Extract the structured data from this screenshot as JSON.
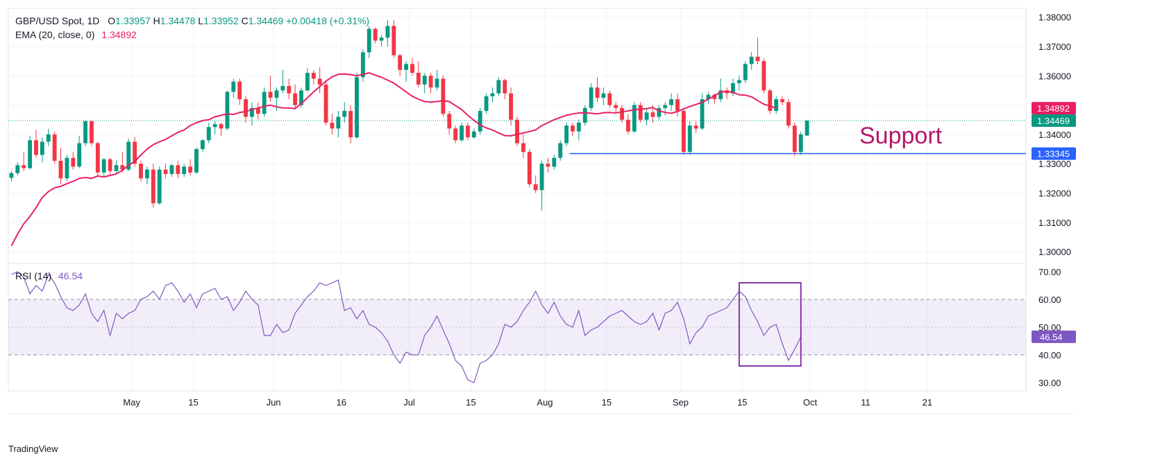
{
  "header": {
    "symbol": "GBP/USD Spot, 1D",
    "o_label": "O",
    "o_value": "1.33957",
    "h_label": "H",
    "h_value": "1.34478",
    "l_label": "L",
    "l_value": "1.33952",
    "c_label": "C",
    "c_value": "1.34469",
    "change": "+0.00418 (+0.31%)",
    "ema_label": "EMA (20, close, 0)",
    "ema_value": "1.34892",
    "rsi_label": "RSI (14)",
    "rsi_value": "46.54"
  },
  "colors": {
    "up": "#089981",
    "down": "#f23645",
    "ema": "#e91e63",
    "rsi": "#7e57c2",
    "support_line": "#2962ff",
    "annotation": "#b5176b"
  },
  "annotation_text": "Support",
  "logo_text": "TradingView",
  "chart_data": [
    {
      "type": "candlestick",
      "title": "GBP/USD Spot, 1D",
      "y_ticks": [
        "1.38000",
        "1.37000",
        "1.36000",
        "1.35000",
        "1.34000",
        "1.33000",
        "1.32000",
        "1.31000",
        "1.30000"
      ],
      "ylim": [
        1.296,
        1.383
      ],
      "x_ticks": [
        {
          "label": "May",
          "i": 20
        },
        {
          "label": "15",
          "i": 30
        },
        {
          "label": "Jun",
          "i": 43
        },
        {
          "label": "16",
          "i": 54
        },
        {
          "label": "Jul",
          "i": 65
        },
        {
          "label": "15",
          "i": 75
        },
        {
          "label": "Aug",
          "i": 87
        },
        {
          "label": "15",
          "i": 97
        },
        {
          "label": "Sep",
          "i": 109
        },
        {
          "label": "15",
          "i": 119
        },
        {
          "label": "Oct",
          "i": 130
        },
        {
          "label": "11",
          "i": 139
        },
        {
          "label": "21",
          "i": 149
        }
      ],
      "xlim": [
        0,
        165
      ],
      "price_labels": [
        {
          "value": 1.34892,
          "text": "1.34892",
          "color": "#e91e63"
        },
        {
          "value": 1.34469,
          "text": "1.34469",
          "color": "#089981"
        },
        {
          "value": 1.33345,
          "text": "1.33345",
          "color": "#2962ff"
        }
      ],
      "support_level": 1.33345,
      "support_start_index": 91,
      "close_line": 1.34469,
      "candles": [
        [
          1.3252,
          1.3275,
          1.324,
          1.3268
        ],
        [
          1.3268,
          1.3305,
          1.326,
          1.3295
        ],
        [
          1.3295,
          1.334,
          1.3275,
          1.3285
        ],
        [
          1.3285,
          1.3395,
          1.328,
          1.338
        ],
        [
          1.338,
          1.3415,
          1.332,
          1.333
        ],
        [
          1.333,
          1.339,
          1.3305,
          1.3375
        ],
        [
          1.3375,
          1.342,
          1.336,
          1.34
        ],
        [
          1.34,
          1.341,
          1.33,
          1.331
        ],
        [
          1.331,
          1.3355,
          1.323,
          1.325
        ],
        [
          1.325,
          1.333,
          1.324,
          1.332
        ],
        [
          1.332,
          1.334,
          1.328,
          1.329
        ],
        [
          1.329,
          1.3395,
          1.3285,
          1.337
        ],
        [
          1.337,
          1.3448,
          1.336,
          1.3445
        ],
        [
          1.3445,
          1.3447,
          1.336,
          1.337
        ],
        [
          1.337,
          1.3375,
          1.326,
          1.327
        ],
        [
          1.327,
          1.332,
          1.3255,
          1.3315
        ],
        [
          1.3315,
          1.332,
          1.326,
          1.3275
        ],
        [
          1.3275,
          1.331,
          1.3265,
          1.3295
        ],
        [
          1.3295,
          1.334,
          1.327,
          1.328
        ],
        [
          1.328,
          1.3385,
          1.3275,
          1.3375
        ],
        [
          1.3375,
          1.3392,
          1.329,
          1.33
        ],
        [
          1.33,
          1.331,
          1.324,
          1.325
        ],
        [
          1.325,
          1.329,
          1.323,
          1.328
        ],
        [
          1.328,
          1.33,
          1.315,
          1.3165
        ],
        [
          1.3165,
          1.329,
          1.316,
          1.328
        ],
        [
          1.328,
          1.33,
          1.325,
          1.3265
        ],
        [
          1.3265,
          1.33,
          1.3255,
          1.3295
        ],
        [
          1.3295,
          1.331,
          1.325,
          1.3265
        ],
        [
          1.3265,
          1.33,
          1.3255,
          1.329
        ],
        [
          1.329,
          1.3315,
          1.326,
          1.327
        ],
        [
          1.327,
          1.3355,
          1.3265,
          1.335
        ],
        [
          1.335,
          1.3385,
          1.334,
          1.338
        ],
        [
          1.338,
          1.344,
          1.337,
          1.3425
        ],
        [
          1.3425,
          1.3445,
          1.34,
          1.3435
        ],
        [
          1.3435,
          1.344,
          1.3395,
          1.342
        ],
        [
          1.342,
          1.355,
          1.3415,
          1.3545
        ],
        [
          1.3545,
          1.359,
          1.3525,
          1.358
        ],
        [
          1.358,
          1.359,
          1.35,
          1.352
        ],
        [
          1.352,
          1.353,
          1.344,
          1.346
        ],
        [
          1.346,
          1.351,
          1.343,
          1.349
        ],
        [
          1.349,
          1.351,
          1.345,
          1.347
        ],
        [
          1.347,
          1.356,
          1.346,
          1.3545
        ],
        [
          1.3545,
          1.36,
          1.351,
          1.3525
        ],
        [
          1.3525,
          1.356,
          1.348,
          1.355
        ],
        [
          1.355,
          1.362,
          1.354,
          1.3565
        ],
        [
          1.3565,
          1.359,
          1.352,
          1.354
        ],
        [
          1.354,
          1.357,
          1.349,
          1.35
        ],
        [
          1.35,
          1.356,
          1.349,
          1.355
        ],
        [
          1.355,
          1.3625,
          1.3545,
          1.361
        ],
        [
          1.361,
          1.362,
          1.357,
          1.359
        ],
        [
          1.359,
          1.363,
          1.354,
          1.357
        ],
        [
          1.357,
          1.358,
          1.343,
          1.344
        ],
        [
          1.344,
          1.347,
          1.34,
          1.342
        ],
        [
          1.342,
          1.348,
          1.339,
          1.346
        ],
        [
          1.346,
          1.351,
          1.344,
          1.348
        ],
        [
          1.348,
          1.35,
          1.337,
          1.339
        ],
        [
          1.339,
          1.361,
          1.3385,
          1.3595
        ],
        [
          1.3595,
          1.369,
          1.358,
          1.368
        ],
        [
          1.368,
          1.377,
          1.366,
          1.376
        ],
        [
          1.376,
          1.3765,
          1.371,
          1.372
        ],
        [
          1.372,
          1.374,
          1.37,
          1.373
        ],
        [
          1.373,
          1.379,
          1.37,
          1.377
        ],
        [
          1.377,
          1.379,
          1.366,
          1.367
        ],
        [
          1.367,
          1.3675,
          1.36,
          1.362
        ],
        [
          1.362,
          1.365,
          1.358,
          1.364
        ],
        [
          1.364,
          1.366,
          1.36,
          1.361
        ],
        [
          1.361,
          1.365,
          1.356,
          1.357
        ],
        [
          1.357,
          1.361,
          1.354,
          1.36
        ],
        [
          1.36,
          1.361,
          1.354,
          1.356
        ],
        [
          1.356,
          1.362,
          1.355,
          1.359
        ],
        [
          1.359,
          1.36,
          1.346,
          1.347
        ],
        [
          1.347,
          1.348,
          1.34,
          1.342
        ],
        [
          1.342,
          1.343,
          1.337,
          1.338
        ],
        [
          1.338,
          1.344,
          1.3375,
          1.343
        ],
        [
          1.343,
          1.344,
          1.338,
          1.339
        ],
        [
          1.339,
          1.342,
          1.3385,
          1.341
        ],
        [
          1.341,
          1.349,
          1.34,
          1.348
        ],
        [
          1.348,
          1.354,
          1.347,
          1.353
        ],
        [
          1.353,
          1.356,
          1.351,
          1.354
        ],
        [
          1.354,
          1.3595,
          1.353,
          1.3585
        ],
        [
          1.3585,
          1.359,
          1.352,
          1.354
        ],
        [
          1.354,
          1.356,
          1.343,
          1.345
        ],
        [
          1.345,
          1.346,
          1.336,
          1.337
        ],
        [
          1.337,
          1.34,
          1.332,
          1.334
        ],
        [
          1.334,
          1.335,
          1.322,
          1.323
        ],
        [
          1.323,
          1.326,
          1.32,
          1.321
        ],
        [
          1.321,
          1.331,
          1.314,
          1.33
        ],
        [
          1.33,
          1.332,
          1.327,
          1.329
        ],
        [
          1.329,
          1.333,
          1.328,
          1.332
        ],
        [
          1.332,
          1.338,
          1.331,
          1.337
        ],
        [
          1.337,
          1.344,
          1.336,
          1.343
        ],
        [
          1.343,
          1.344,
          1.3395,
          1.341
        ],
        [
          1.341,
          1.345,
          1.338,
          1.344
        ],
        [
          1.344,
          1.35,
          1.343,
          1.349
        ],
        [
          1.349,
          1.3575,
          1.348,
          1.356
        ],
        [
          1.356,
          1.3595,
          1.351,
          1.3525
        ],
        [
          1.3525,
          1.356,
          1.35,
          1.354
        ],
        [
          1.354,
          1.355,
          1.349,
          1.35
        ],
        [
          1.35,
          1.351,
          1.347,
          1.349
        ],
        [
          1.349,
          1.35,
          1.344,
          1.345
        ],
        [
          1.345,
          1.347,
          1.34,
          1.341
        ],
        [
          1.341,
          1.351,
          1.3405,
          1.35
        ],
        [
          1.35,
          1.351,
          1.344,
          1.345
        ],
        [
          1.345,
          1.349,
          1.343,
          1.3475
        ],
        [
          1.3475,
          1.35,
          1.344,
          1.346
        ],
        [
          1.346,
          1.35,
          1.345,
          1.349
        ],
        [
          1.349,
          1.351,
          1.3465,
          1.35
        ],
        [
          1.35,
          1.354,
          1.348,
          1.352
        ],
        [
          1.352,
          1.354,
          1.346,
          1.348
        ],
        [
          1.348,
          1.349,
          1.333,
          1.334
        ],
        [
          1.334,
          1.3445,
          1.333,
          1.343
        ],
        [
          1.343,
          1.3445,
          1.3405,
          1.342
        ],
        [
          1.342,
          1.354,
          1.3415,
          1.352
        ],
        [
          1.352,
          1.3545,
          1.3505,
          1.3535
        ],
        [
          1.3535,
          1.354,
          1.3505,
          1.352
        ],
        [
          1.352,
          1.359,
          1.351,
          1.355
        ],
        [
          1.355,
          1.356,
          1.352,
          1.354
        ],
        [
          1.354,
          1.359,
          1.353,
          1.3575
        ],
        [
          1.3575,
          1.36,
          1.355,
          1.3585
        ],
        [
          1.3585,
          1.365,
          1.3575,
          1.364
        ],
        [
          1.364,
          1.368,
          1.362,
          1.3665
        ],
        [
          1.3665,
          1.373,
          1.364,
          1.365
        ],
        [
          1.365,
          1.366,
          1.354,
          1.355
        ],
        [
          1.355,
          1.3555,
          1.347,
          1.348
        ],
        [
          1.348,
          1.353,
          1.347,
          1.352
        ],
        [
          1.352,
          1.353,
          1.35,
          1.351
        ],
        [
          1.351,
          1.352,
          1.342,
          1.343
        ],
        [
          1.343,
          1.344,
          1.3325,
          1.334
        ],
        [
          1.334,
          1.341,
          1.333,
          1.34
        ],
        [
          1.3396,
          1.3448,
          1.3395,
          1.3447
        ]
      ],
      "ema": [
        1.302,
        1.306,
        1.3095,
        1.312,
        1.315,
        1.3185,
        1.3205,
        1.3218,
        1.3223,
        1.3232,
        1.324,
        1.325,
        1.3253,
        1.325,
        1.3258,
        1.3255,
        1.326,
        1.3265,
        1.3278,
        1.3295,
        1.3308,
        1.333,
        1.335,
        1.3365,
        1.3375,
        1.3383,
        1.3395,
        1.3407,
        1.3415,
        1.343,
        1.344,
        1.3447,
        1.345,
        1.346,
        1.3465,
        1.347,
        1.3468,
        1.3475,
        1.3478,
        1.3485,
        1.349,
        1.3496,
        1.35,
        1.3494,
        1.349,
        1.349,
        1.3488,
        1.3505,
        1.3525,
        1.3545,
        1.3563,
        1.3582,
        1.3596,
        1.3605,
        1.3606,
        1.3604,
        1.36,
        1.3605,
        1.361,
        1.3602,
        1.3595,
        1.3585,
        1.3575,
        1.356,
        1.3545,
        1.353,
        1.352,
        1.3512,
        1.351,
        1.3512,
        1.3515,
        1.3512,
        1.3498,
        1.3485,
        1.3465,
        1.3448,
        1.3432,
        1.3422,
        1.3415,
        1.3405,
        1.3396,
        1.3395,
        1.34,
        1.3405,
        1.341,
        1.3415,
        1.343,
        1.344,
        1.345,
        1.3458,
        1.3465,
        1.347,
        1.3473,
        1.3474,
        1.3472,
        1.347,
        1.3474,
        1.3475,
        1.3473,
        1.3477,
        1.348,
        1.3484,
        1.3486,
        1.3488,
        1.3492,
        1.348,
        1.3475,
        1.3472,
        1.3478,
        1.3487,
        1.3495,
        1.3502,
        1.351,
        1.352,
        1.3532,
        1.3545,
        1.3547,
        1.3543,
        1.3535,
        1.3534,
        1.3528,
        1.3515,
        1.3503,
        1.3497,
        1.3489
      ]
    },
    {
      "type": "line",
      "title": "RSI (14)",
      "y_ticks": [
        "70.00",
        "60.00",
        "50.00",
        "40.00",
        "30.00"
      ],
      "ylim": [
        27,
        73
      ],
      "band": [
        40,
        60
      ],
      "midline": 50,
      "value_label": "46.54",
      "highlight_box": {
        "i0": 118.5,
        "i1": 128.5,
        "y0": 36,
        "y1": 66
      },
      "values": [
        69,
        70,
        68,
        62,
        65,
        63,
        69,
        66,
        61,
        57,
        56,
        58,
        62,
        55,
        52,
        56,
        47,
        55,
        53,
        55,
        56,
        60,
        61,
        63,
        60,
        65,
        66,
        63,
        59,
        62,
        57,
        62,
        63,
        64,
        60,
        61,
        56,
        59,
        63,
        60,
        58,
        47,
        47,
        51,
        48,
        49,
        55,
        58,
        61,
        63,
        66,
        65,
        66,
        67,
        56,
        57,
        53,
        56,
        51,
        50,
        48,
        45,
        40,
        37,
        41,
        40,
        40,
        47,
        50,
        54,
        49,
        44,
        38,
        36,
        31,
        30,
        37,
        38,
        40,
        44,
        51,
        50,
        52,
        56,
        59,
        63,
        58,
        55,
        59,
        54,
        51,
        50,
        56,
        47,
        49,
        50,
        52,
        54,
        55,
        56,
        54,
        52,
        51,
        52,
        55,
        49,
        55,
        56,
        59,
        53,
        44,
        48,
        50,
        54,
        55,
        56,
        57,
        60,
        63,
        61,
        56,
        52,
        47,
        50,
        51,
        44,
        38,
        42,
        46.5
      ]
    }
  ]
}
